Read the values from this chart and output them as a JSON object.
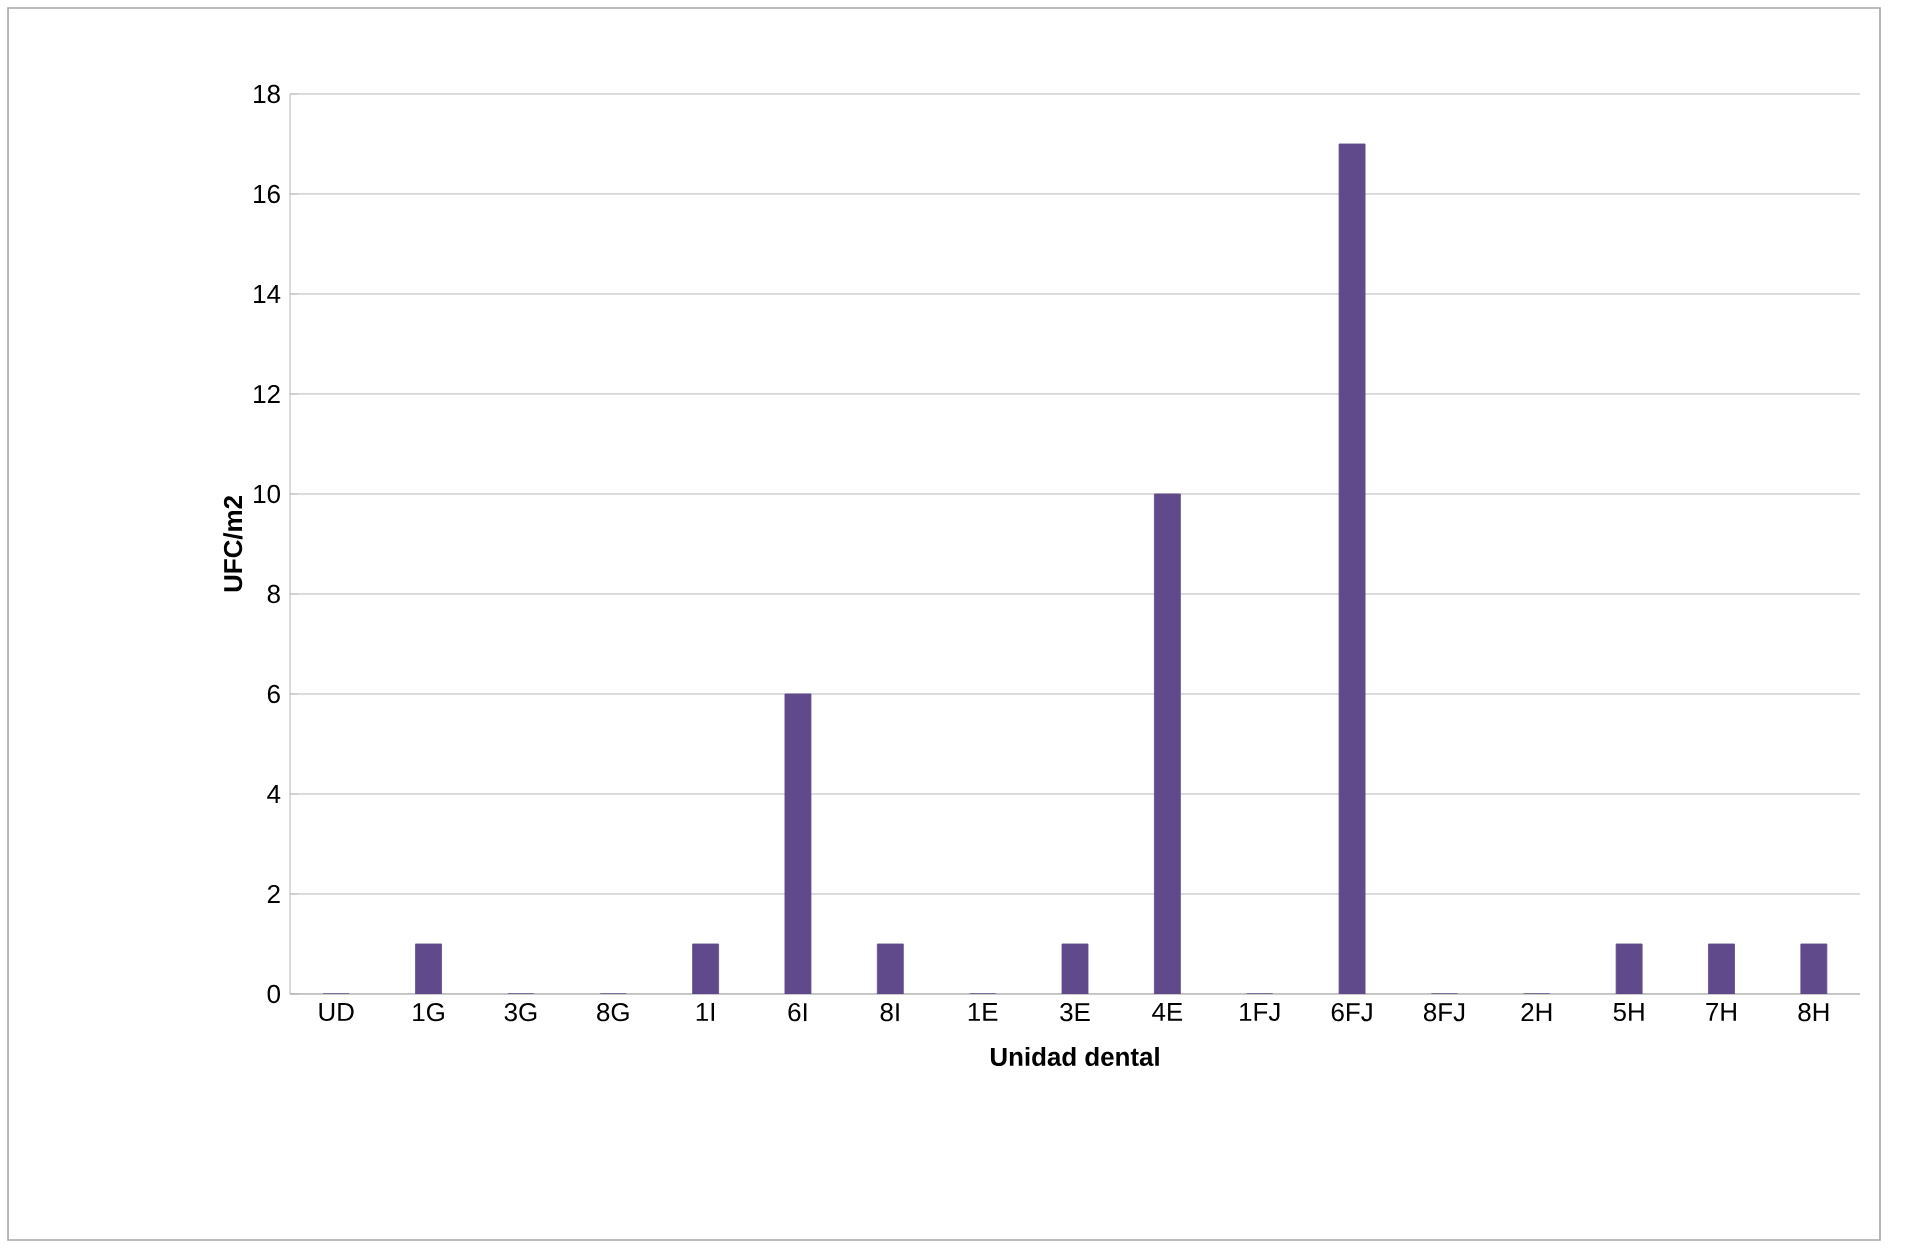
{
  "chart_data": {
    "type": "bar",
    "xlabel": "Unidad dental",
    "ylabel": "UFC/m2",
    "categories": [
      "UD",
      "1G",
      "3G",
      "8G",
      "1I",
      "6I",
      "8I",
      "1E",
      "3E",
      "4E",
      "1FJ",
      "6FJ",
      "8FJ",
      "2H",
      "5H",
      "7H",
      "8H"
    ],
    "values": [
      0,
      1,
      0,
      0,
      1,
      6,
      1,
      0,
      1,
      10,
      0,
      17,
      0,
      0,
      1,
      1,
      1
    ],
    "color": "#604a8c",
    "ylim": [
      0,
      18
    ],
    "yticks": [
      0,
      2,
      4,
      6,
      8,
      10,
      12,
      14,
      16,
      18
    ],
    "grid": "y"
  }
}
